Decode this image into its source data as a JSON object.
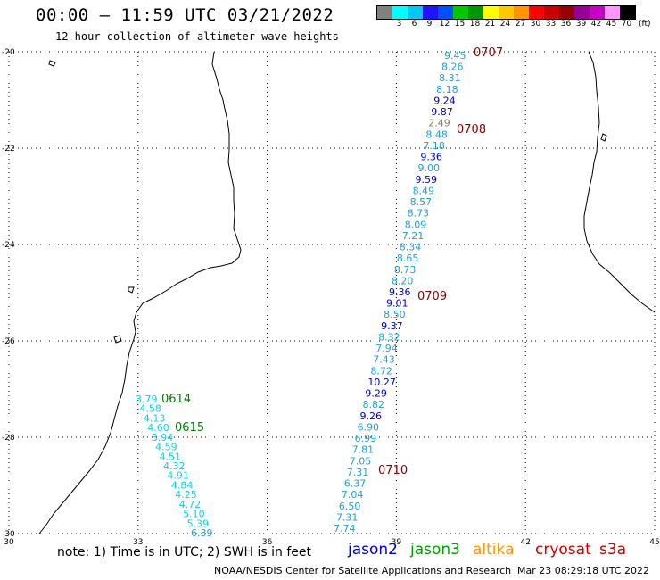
{
  "header": {
    "title": "00:00 – 11:59 UTC 03/21/2022",
    "subtitle": "12 hour collection of altimeter wave heights"
  },
  "legend": {
    "colors": [
      "#808080",
      "#00ffff",
      "#00c8f0",
      "#1e14ff",
      "#0050ff",
      "#00c800",
      "#009600",
      "#ffff00",
      "#ffc800",
      "#ff9600",
      "#ff0000",
      "#c80000",
      "#960000",
      "#960096",
      "#c800c8",
      "#ff96ff",
      "#000000"
    ],
    "labels": [
      "",
      "3",
      "6",
      "9",
      "12",
      "15",
      "18",
      "21",
      "24",
      "27",
      "30",
      "33",
      "36",
      "39",
      "42",
      "45",
      "70"
    ],
    "unit": "(ft)"
  },
  "map": {
    "lon_range": [
      30,
      45
    ],
    "lat_range": [
      -30,
      -20
    ],
    "x_ticks": [
      "30",
      "33",
      "36",
      "39",
      "42",
      "45"
    ],
    "y_ticks": [
      "-20",
      "-22",
      "-24",
      "-26",
      "-28",
      "-30"
    ],
    "grid": "dotted"
  },
  "passes": [
    {
      "id": "0707",
      "mission": "cryosat",
      "color": "#8b0000"
    },
    {
      "id": "0708",
      "mission": "cryosat",
      "color": "#8b0000"
    },
    {
      "id": "0709",
      "mission": "cryosat",
      "color": "#8b0000"
    },
    {
      "id": "0710",
      "mission": "cryosat",
      "color": "#8b0000"
    },
    {
      "id": "0614",
      "mission": "jason3",
      "color": "#007f00"
    },
    {
      "id": "0615",
      "mission": "jason3",
      "color": "#007f00"
    }
  ],
  "track_east": [
    "9.45",
    "8.26",
    "8.31",
    "8.18",
    "9.24",
    "9.87",
    "2.49",
    "8.48",
    "7.18",
    "9.36",
    "9.00",
    "9.59",
    "8.49",
    "8.57",
    "8.73",
    "8.09",
    "7.21",
    "8.34",
    "8.65",
    "8.73",
    "8.20",
    "9.36",
    "9.01",
    "8.50",
    "9.37",
    "8.32",
    "7.94",
    "7.43",
    "8.72",
    "10.27",
    "9.29",
    "8.82",
    "9.26",
    "6.90",
    "6.99",
    "7.81",
    "7.05",
    "7.31",
    "6.37",
    "7.04",
    "6.50",
    "7.31",
    "7.74"
  ],
  "track_east_colors": [
    "#1ea0d8",
    "#1ea0d8",
    "#1ea0d8",
    "#1ea0d8",
    "#0000c8",
    "#0000c8",
    "#808080",
    "#1ea0d8",
    "#1ea0d8",
    "#0000c8",
    "#1ea0d8",
    "#0000c8",
    "#1ea0d8",
    "#1ea0d8",
    "#1ea0d8",
    "#1ea0d8",
    "#1ea0d8",
    "#1ea0d8",
    "#1ea0d8",
    "#1ea0d8",
    "#1ea0d8",
    "#0000c8",
    "#0000c8",
    "#1ea0d8",
    "#0000c8",
    "#1ea0d8",
    "#1ea0d8",
    "#1ea0d8",
    "#1ea0d8",
    "#0000c8",
    "#0000c8",
    "#1ea0d8",
    "#0000c8",
    "#1ea0d8",
    "#1ea0d8",
    "#1ea0d8",
    "#1ea0d8",
    "#1ea0d8",
    "#1ea0d8",
    "#1ea0d8",
    "#1ea0d8",
    "#1ea0d8",
    "#1ea0d8"
  ],
  "track_west": [
    "3.79",
    "4.58",
    "4.13",
    "4.60",
    "3.94",
    "4.59",
    "4.51",
    "4.32",
    "4.91",
    "4.84",
    "4.25",
    "4.72",
    "5.10",
    "5.39",
    "6.39"
  ],
  "track_west_colors": [
    "#00d8e8",
    "#00d8e8",
    "#00d8e8",
    "#00d8e8",
    "#00d8e8",
    "#00d8e8",
    "#00d8e8",
    "#00d8e8",
    "#00d8e8",
    "#00d8e8",
    "#00d8e8",
    "#00d8e8",
    "#00d8e8",
    "#00d8e8",
    "#1ea0d8"
  ],
  "footer": {
    "note": "note: 1) Time is in UTC; 2) SWH is in feet",
    "missions": [
      {
        "name": "jason2",
        "color": "#0000d0"
      },
      {
        "name": "jason3",
        "color": "#00a000"
      },
      {
        "name": "altika",
        "color": "#ff9600"
      },
      {
        "name": "cryosat",
        "color": "#c80000"
      },
      {
        "name": "s3a",
        "color": "#c80000"
      }
    ],
    "credit": "NOAA/NESDIS Center for Satellite Applications and Research",
    "timestamp": "Mar 23 08:29:18 UTC 2022"
  }
}
